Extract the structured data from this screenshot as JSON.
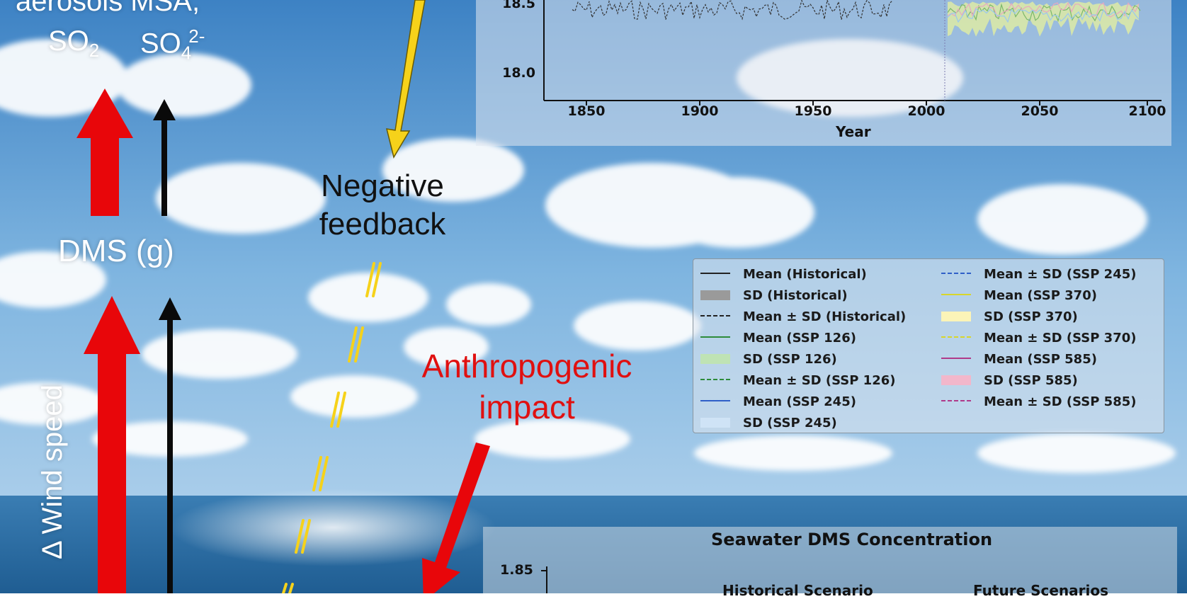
{
  "colors": {
    "sky_top": "#3f86c8",
    "sky_mid": "#82b8e3",
    "ocean": "#2f6fa3",
    "wind_arrow": "#e8060a",
    "feedback_arrow": "#f6d21a",
    "anthropogenic_arrow": "#e8060a"
  },
  "left_column": {
    "aerosols_line1": "aerosols MSA,",
    "so2": "SO",
    "so2_sub": "2",
    "so4": "SO",
    "so4_sub": "4",
    "so4_sup": "2-",
    "dms_gas": "DMS (g)",
    "wind_speed": "Δ Wind speed"
  },
  "center": {
    "negative_feedback_line1": "Negative",
    "negative_feedback_line2": "feedback",
    "anthropogenic_line1": "Anthropogenic",
    "anthropogenic_line2": "impact"
  },
  "top_chart": {
    "y_tick_labels": [
      "18.5",
      "18.0"
    ],
    "x_tick_labels": [
      "1850",
      "1900",
      "1950",
      "2000",
      "2050",
      "2100"
    ],
    "xlabel": "Year"
  },
  "legend": {
    "col1": [
      {
        "label": "Mean (Historical)",
        "kind": "line",
        "color": "#222222"
      },
      {
        "label": "SD (Historical)",
        "kind": "patch",
        "color": "#9a9a9a"
      },
      {
        "label": "Mean ± SD (Historical)",
        "kind": "dash",
        "color": "#222222"
      },
      {
        "label": "Mean (SSP 126)",
        "kind": "line",
        "color": "#2e8b3a"
      },
      {
        "label": "SD (SSP 126)",
        "kind": "patch",
        "color": "#bfe3b4"
      },
      {
        "label": "Mean ± SD (SSP 126)",
        "kind": "dash",
        "color": "#2e8b3a"
      },
      {
        "label": "Mean (SSP 245)",
        "kind": "line",
        "color": "#2f5fc8"
      },
      {
        "label": "SD (SSP 245)",
        "kind": "patch",
        "color": "#cfe3f6"
      }
    ],
    "col2": [
      {
        "label": "Mean ± SD (SSP 245)",
        "kind": "dash",
        "color": "#2f5fc8"
      },
      {
        "label": "Mean (SSP 370)",
        "kind": "line",
        "color": "#d8d62a"
      },
      {
        "label": "SD (SSP 370)",
        "kind": "patch",
        "color": "#fbf4b8"
      },
      {
        "label": "Mean ± SD (SSP 370)",
        "kind": "dash",
        "color": "#d8d62a"
      },
      {
        "label": "Mean (SSP 585)",
        "kind": "line",
        "color": "#b03a8a"
      },
      {
        "label": "SD (SSP 585)",
        "kind": "patch",
        "color": "#f2b7cb"
      },
      {
        "label": "Mean ± SD (SSP 585)",
        "kind": "dash",
        "color": "#b03a8a"
      }
    ]
  },
  "bottom_chart": {
    "title": "Seawater DMS Concentration",
    "y_tick_top": "1.85",
    "historical_label": "Historical Scenario",
    "future_label": "Future Scenarios"
  }
}
